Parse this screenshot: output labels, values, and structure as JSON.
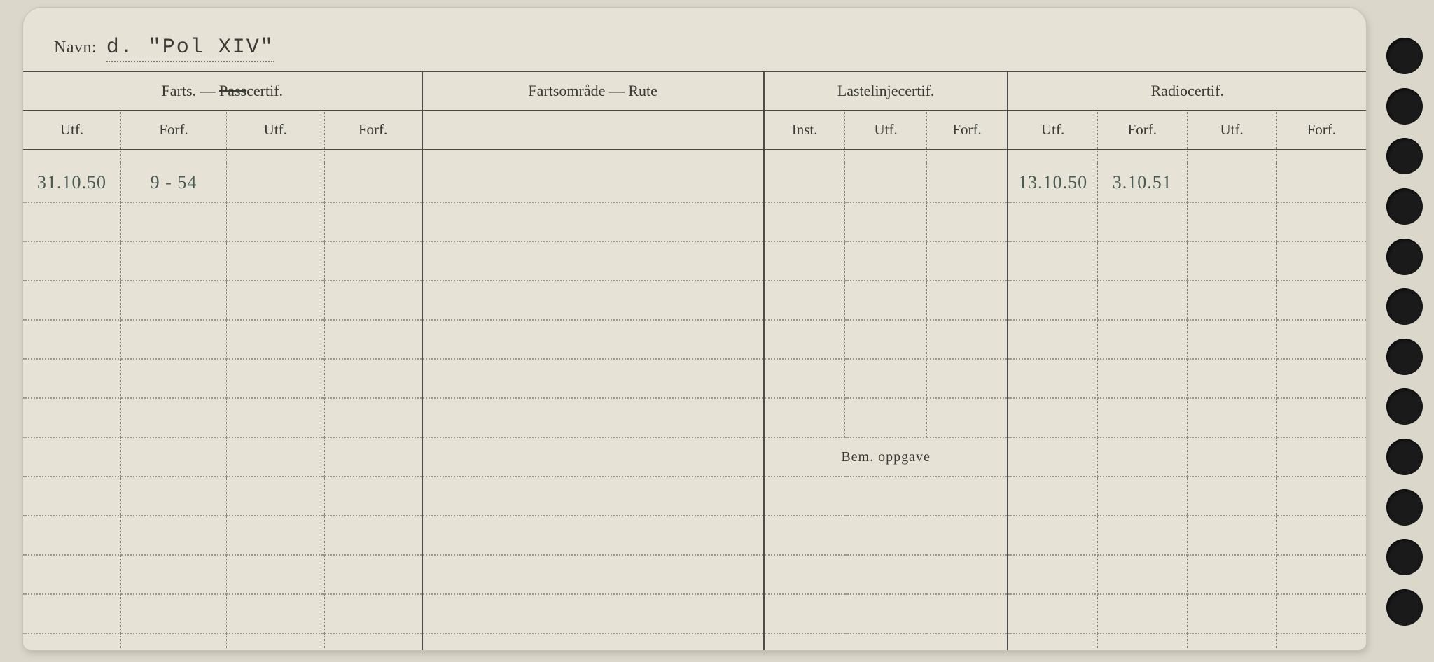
{
  "header": {
    "label": "Navn:",
    "value": "d. \"Pol XIV\""
  },
  "sections": {
    "farts": {
      "title_pre": "Farts. — ",
      "title_strike": "Pass",
      "title_post": "certif."
    },
    "rute": {
      "title": "Fartsområde — Rute"
    },
    "laste": {
      "title": "Lastelinjecertif."
    },
    "radio": {
      "title": "Radiocertif."
    }
  },
  "subheaders": {
    "utf": "Utf.",
    "forf": "Forf.",
    "inst": "Inst."
  },
  "bem_label": "Bem. oppgave",
  "rows": [
    {
      "f_utf1": "31.10.50",
      "f_forf1": "9 - 54",
      "f_utf2": "",
      "f_forf2": "",
      "rute": "",
      "l_inst": "",
      "l_utf": "",
      "l_forf": "",
      "r_utf1": "13.10.50",
      "r_forf1": "3.10.51",
      "r_utf2": "",
      "r_forf2": ""
    },
    {
      "f_utf1": "",
      "f_forf1": "",
      "f_utf2": "",
      "f_forf2": "",
      "rute": "",
      "l_inst": "",
      "l_utf": "",
      "l_forf": "",
      "r_utf1": "",
      "r_forf1": "",
      "r_utf2": "",
      "r_forf2": ""
    },
    {
      "f_utf1": "",
      "f_forf1": "",
      "f_utf2": "",
      "f_forf2": "",
      "rute": "",
      "l_inst": "",
      "l_utf": "",
      "l_forf": "",
      "r_utf1": "",
      "r_forf1": "",
      "r_utf2": "",
      "r_forf2": ""
    },
    {
      "f_utf1": "",
      "f_forf1": "",
      "f_utf2": "",
      "f_forf2": "",
      "rute": "",
      "l_inst": "",
      "l_utf": "",
      "l_forf": "",
      "r_utf1": "",
      "r_forf1": "",
      "r_utf2": "",
      "r_forf2": ""
    },
    {
      "f_utf1": "",
      "f_forf1": "",
      "f_utf2": "",
      "f_forf2": "",
      "rute": "",
      "l_inst": "",
      "l_utf": "",
      "l_forf": "",
      "r_utf1": "",
      "r_forf1": "",
      "r_utf2": "",
      "r_forf2": ""
    },
    {
      "f_utf1": "",
      "f_forf1": "",
      "f_utf2": "",
      "f_forf2": "",
      "rute": "",
      "l_inst": "",
      "l_utf": "",
      "l_forf": "",
      "r_utf1": "",
      "r_forf1": "",
      "r_utf2": "",
      "r_forf2": ""
    },
    {
      "f_utf1": "",
      "f_forf1": "",
      "f_utf2": "",
      "f_forf2": "",
      "rute": "",
      "l_inst": "",
      "l_utf": "",
      "l_forf": "",
      "r_utf1": "",
      "r_forf1": "",
      "r_utf2": "",
      "r_forf2": ""
    }
  ],
  "bem_rows": [
    {
      "c1": "",
      "c2": "",
      "c3": ""
    },
    {
      "c1": "",
      "c2": "",
      "c3": ""
    },
    {
      "c1": "",
      "c2": "",
      "c3": ""
    },
    {
      "c1": "",
      "c2": "",
      "c3": ""
    },
    {
      "c1": "",
      "c2": "",
      "c3": ""
    },
    {
      "c1": "",
      "c2": "",
      "c3": ""
    }
  ],
  "colors": {
    "paper": "#e6e3d6",
    "bg": "#dbd8cb",
    "ink": "#3a3a36",
    "handwriting": "#4a5a55",
    "dotted": "#9c998c",
    "hole": "#1a1a1a"
  }
}
